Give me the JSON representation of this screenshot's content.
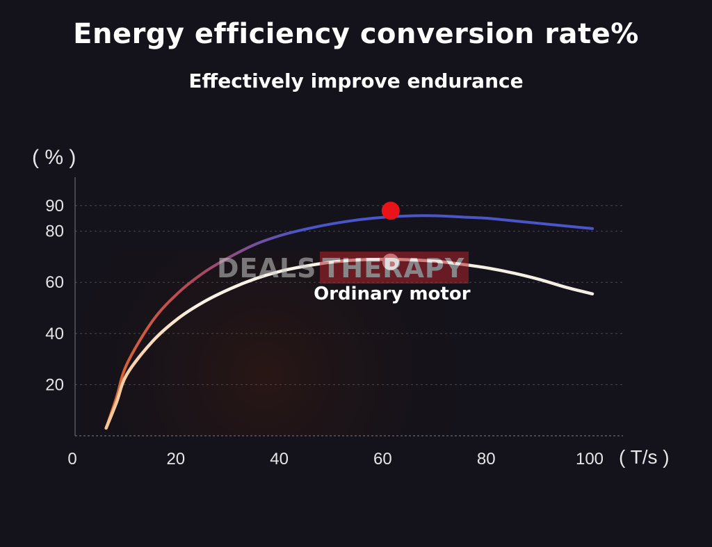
{
  "title": "Energy efficiency conversion rate%",
  "subtitle": "Effectively improve endurance",
  "watermark": {
    "left": "DEALS",
    "right": "THERAPY"
  },
  "colors": {
    "background": "#14121a",
    "high_efficiency_line": "#4a55c8",
    "ordinary_line": "#f4efe4",
    "low_segment": "#e06a2a",
    "peak_dot": "#e8141a",
    "ordinary_dot": "#d8d8d8"
  },
  "chart_data": {
    "type": "line",
    "ylabel": "( % )",
    "xlabel": "( T/s )",
    "xlim": [
      0,
      100
    ],
    "ylim": [
      0,
      100
    ],
    "x_ticks": [
      "0",
      "20",
      "40",
      "60",
      "80",
      "100"
    ],
    "y_ticks": [
      "20",
      "40",
      "60",
      "80",
      "90"
    ],
    "y_tick_values": [
      20,
      40,
      60,
      80,
      90
    ],
    "grid": true,
    "series": [
      {
        "name": "",
        "x": [
          6,
          8,
          10,
          15,
          20,
          25,
          30,
          35,
          40,
          45,
          50,
          55,
          60,
          65,
          70,
          75,
          80,
          85,
          90,
          95,
          100
        ],
        "y": [
          3,
          15,
          28,
          45,
          56,
          64,
          70,
          75,
          78.5,
          81,
          83,
          84.5,
          85.5,
          86,
          86,
          85.5,
          85,
          84,
          83,
          82,
          81
        ]
      },
      {
        "name": "Ordinary motor",
        "x": [
          6,
          8,
          10,
          15,
          20,
          25,
          30,
          35,
          40,
          45,
          50,
          55,
          60,
          65,
          70,
          75,
          80,
          85,
          90,
          95,
          100
        ],
        "y": [
          3,
          13,
          24,
          37,
          46,
          52.5,
          57.5,
          61.5,
          64.5,
          66.5,
          68,
          68.8,
          69,
          68.8,
          68.2,
          67,
          65.5,
          63.5,
          61,
          58,
          55.5
        ]
      }
    ],
    "markers": [
      {
        "x": 61,
        "y": 88,
        "kind": "peak"
      },
      {
        "x": 61,
        "y": 68,
        "kind": "ordinary"
      }
    ],
    "annotations": [
      {
        "text": "Ordinary motor",
        "x": 61,
        "y": 56
      }
    ]
  }
}
